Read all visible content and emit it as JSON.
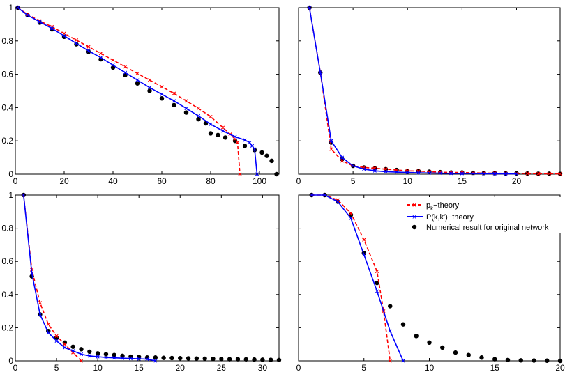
{
  "legend": {
    "items": [
      {
        "label_main": "p",
        "label_sub": "k",
        "label_rest": "−theory",
        "color": "#ff0000",
        "dash": true,
        "marker": "x"
      },
      {
        "label_main": "P(k,k')−theory",
        "label_sub": "",
        "label_rest": "",
        "color": "#0000ff",
        "dash": false,
        "marker": "x"
      },
      {
        "label_main": "Numerical result for original network",
        "label_sub": "",
        "label_rest": "",
        "color": "#000000",
        "dash": null,
        "marker": "dot"
      }
    ]
  },
  "chart_data": [
    {
      "type": "line",
      "panel": "top-left",
      "xlim": [
        0,
        108
      ],
      "ylim": [
        0,
        1
      ],
      "xticks": [
        0,
        20,
        40,
        60,
        80,
        100
      ],
      "yticks": [
        0,
        0.2,
        0.4,
        0.6,
        0.8,
        1
      ],
      "ytick_labels": [
        "0",
        "0.2",
        "0.4",
        "0.6",
        "0.8",
        "1"
      ],
      "series": [
        {
          "name": "pk-theory",
          "color": "#ff0000",
          "dash": true,
          "marker": "x",
          "x": [
            1,
            5,
            10,
            15,
            20,
            25,
            30,
            35,
            40,
            45,
            50,
            55,
            60,
            65,
            70,
            75,
            80,
            85,
            88,
            90,
            91,
            92
          ],
          "y": [
            1,
            0.96,
            0.92,
            0.885,
            0.845,
            0.805,
            0.765,
            0.725,
            0.685,
            0.645,
            0.605,
            0.565,
            0.525,
            0.485,
            0.44,
            0.395,
            0.345,
            0.28,
            0.24,
            0.21,
            0.19,
            0.0
          ]
        },
        {
          "name": "Pkk-theory",
          "color": "#0000ff",
          "dash": false,
          "marker": "x",
          "x": [
            1,
            5,
            10,
            15,
            20,
            25,
            30,
            35,
            40,
            45,
            50,
            55,
            60,
            65,
            70,
            75,
            80,
            85,
            90,
            94,
            96,
            97,
            98,
            99
          ],
          "y": [
            1,
            0.955,
            0.915,
            0.875,
            0.83,
            0.785,
            0.74,
            0.7,
            0.655,
            0.61,
            0.565,
            0.52,
            0.48,
            0.44,
            0.395,
            0.35,
            0.3,
            0.26,
            0.225,
            0.205,
            0.19,
            0.17,
            0.15,
            0.0
          ]
        },
        {
          "name": "numerical",
          "color": "#000000",
          "marker": "dot",
          "x": [
            1,
            5,
            10,
            15,
            20,
            25,
            30,
            35,
            40,
            45,
            50,
            55,
            60,
            65,
            70,
            75,
            78,
            80,
            83,
            86,
            90,
            94,
            98,
            101,
            103,
            105,
            107
          ],
          "y": [
            1,
            0.955,
            0.91,
            0.87,
            0.825,
            0.78,
            0.735,
            0.69,
            0.64,
            0.595,
            0.545,
            0.5,
            0.455,
            0.415,
            0.37,
            0.33,
            0.305,
            0.245,
            0.235,
            0.22,
            0.2,
            0.17,
            0.145,
            0.13,
            0.11,
            0.08,
            0.0
          ]
        }
      ]
    },
    {
      "type": "line",
      "panel": "top-right",
      "xlim": [
        0,
        24
      ],
      "ylim": [
        0,
        1
      ],
      "xticks": [
        0,
        5,
        10,
        15,
        20
      ],
      "yticks": [
        0,
        0.2,
        0.4,
        0.6,
        0.8,
        1
      ],
      "series": [
        {
          "name": "pk-theory",
          "color": "#ff0000",
          "dash": true,
          "marker": "x",
          "x": [
            1,
            2,
            3,
            4,
            5,
            6,
            7,
            8,
            9,
            10,
            11,
            12,
            13,
            14,
            15,
            16,
            17,
            18,
            19,
            20,
            21,
            22,
            23,
            24
          ],
          "y": [
            1,
            0.61,
            0.15,
            0.08,
            0.05,
            0.04,
            0.035,
            0.03,
            0.025,
            0.02,
            0.018,
            0.015,
            0.012,
            0.01,
            0.01,
            0.008,
            0.007,
            0.006,
            0.005,
            0.005,
            0.004,
            0.003,
            0.003,
            0.002
          ]
        },
        {
          "name": "Pkk-theory",
          "color": "#0000ff",
          "dash": false,
          "marker": "x",
          "x": [
            1,
            2,
            3,
            4,
            5,
            6,
            7,
            8,
            9,
            10,
            11,
            12,
            13,
            14,
            15,
            16,
            17,
            18,
            19,
            20
          ],
          "y": [
            1,
            0.61,
            0.2,
            0.1,
            0.05,
            0.03,
            0.02,
            0.015,
            0.012,
            0.01,
            0.008,
            0.007,
            0.006,
            0.005,
            0.004,
            0.004,
            0.003,
            0.003,
            0.002,
            0.002
          ]
        },
        {
          "name": "numerical",
          "color": "#000000",
          "marker": "dot",
          "x": [
            1,
            2,
            3,
            4,
            5,
            6,
            7,
            8,
            9,
            10,
            11,
            12,
            13,
            14,
            15,
            16,
            17,
            18,
            19,
            20,
            21,
            22,
            23,
            24
          ],
          "y": [
            1,
            0.61,
            0.19,
            0.09,
            0.05,
            0.04,
            0.035,
            0.03,
            0.025,
            0.02,
            0.018,
            0.015,
            0.012,
            0.01,
            0.01,
            0.008,
            0.007,
            0.006,
            0.005,
            0.005,
            0.004,
            0.003,
            0.003,
            0.002
          ]
        }
      ]
    },
    {
      "type": "line",
      "panel": "bottom-left",
      "xlim": [
        0,
        32
      ],
      "ylim": [
        0,
        1
      ],
      "xticks": [
        0,
        5,
        10,
        15,
        20,
        25,
        30
      ],
      "yticks": [
        0,
        0.2,
        0.4,
        0.6,
        0.8,
        1
      ],
      "ytick_labels": [
        "0",
        "0.2",
        "0.4",
        "0.6",
        "0.8",
        "1"
      ],
      "series": [
        {
          "name": "pk-theory",
          "color": "#ff0000",
          "dash": true,
          "marker": "x",
          "x": [
            1,
            2,
            3,
            4,
            5,
            6,
            7,
            8
          ],
          "y": [
            1,
            0.55,
            0.35,
            0.22,
            0.15,
            0.1,
            0.05,
            0.0
          ]
        },
        {
          "name": "Pkk-theory",
          "color": "#0000ff",
          "dash": false,
          "marker": "x",
          "x": [
            1,
            2,
            3,
            4,
            5,
            6,
            7,
            8,
            9,
            10,
            11,
            12,
            13,
            14,
            15,
            16,
            17
          ],
          "y": [
            1,
            0.53,
            0.28,
            0.17,
            0.12,
            0.08,
            0.06,
            0.04,
            0.03,
            0.025,
            0.02,
            0.018,
            0.016,
            0.014,
            0.012,
            0.01,
            0.0
          ]
        },
        {
          "name": "numerical",
          "color": "#000000",
          "marker": "dot",
          "x": [
            1,
            2,
            3,
            4,
            5,
            6,
            7,
            8,
            9,
            10,
            11,
            12,
            13,
            14,
            15,
            16,
            17,
            18,
            19,
            20,
            21,
            22,
            23,
            24,
            25,
            26,
            27,
            28,
            29,
            30,
            31,
            32
          ],
          "y": [
            1,
            0.51,
            0.28,
            0.18,
            0.14,
            0.11,
            0.085,
            0.07,
            0.055,
            0.045,
            0.04,
            0.035,
            0.03,
            0.025,
            0.023,
            0.02,
            0.02,
            0.018,
            0.017,
            0.016,
            0.015,
            0.014,
            0.013,
            0.012,
            0.011,
            0.01,
            0.01,
            0.009,
            0.008,
            0.007,
            0.006,
            0.005
          ]
        }
      ]
    },
    {
      "type": "line",
      "panel": "bottom-right",
      "xlim": [
        0,
        20
      ],
      "ylim": [
        0,
        1
      ],
      "xticks": [
        0,
        5,
        10,
        15,
        20
      ],
      "yticks": [
        0,
        0.2,
        0.4,
        0.6,
        0.8,
        1
      ],
      "series": [
        {
          "name": "pk-theory",
          "color": "#ff0000",
          "dash": true,
          "marker": "x",
          "x": [
            1,
            2,
            3,
            4,
            5,
            6,
            6.5,
            7
          ],
          "y": [
            1,
            1,
            0.97,
            0.89,
            0.73,
            0.54,
            0.3,
            0.0
          ]
        },
        {
          "name": "Pkk-theory",
          "color": "#0000ff",
          "dash": false,
          "marker": "x",
          "x": [
            1,
            2,
            3,
            4,
            5,
            6,
            7,
            8
          ],
          "y": [
            1,
            1,
            0.96,
            0.86,
            0.64,
            0.42,
            0.18,
            0.0
          ]
        },
        {
          "name": "numerical",
          "color": "#000000",
          "marker": "dot",
          "x": [
            1,
            2,
            3,
            4,
            5,
            6,
            7,
            8,
            9,
            10,
            11,
            12,
            13,
            14,
            15,
            16,
            17,
            18,
            19,
            20
          ],
          "y": [
            1,
            1,
            0.96,
            0.88,
            0.65,
            0.47,
            0.33,
            0.22,
            0.15,
            0.11,
            0.08,
            0.05,
            0.035,
            0.02,
            0.01,
            0.005,
            0.003,
            0.002,
            0.001,
            0.0
          ]
        }
      ]
    }
  ]
}
